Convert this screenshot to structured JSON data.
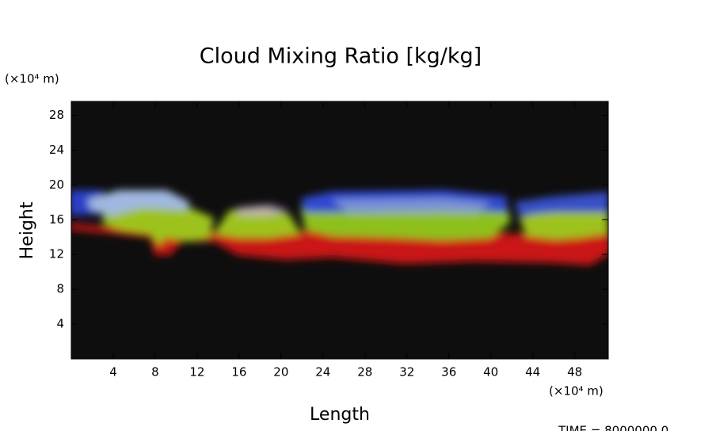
{
  "chart_data": {
    "type": "image",
    "title": "Cloud Mixing Ratio [kg/kg]",
    "x_label": "Length",
    "y_label": "Height",
    "x_unit": "(×10⁴ m)",
    "y_unit": "(×10⁴ m)",
    "time_label": "TIME = 8000000.0",
    "xlim": [
      0,
      51.2
    ],
    "ylim": [
      0,
      29.6
    ],
    "xticks": [
      4,
      8,
      12,
      16,
      20,
      24,
      28,
      32,
      36,
      40,
      44,
      48
    ],
    "yticks": [
      4,
      8,
      12,
      16,
      20,
      24,
      28
    ],
    "background": "#0e0e0e"
  }
}
